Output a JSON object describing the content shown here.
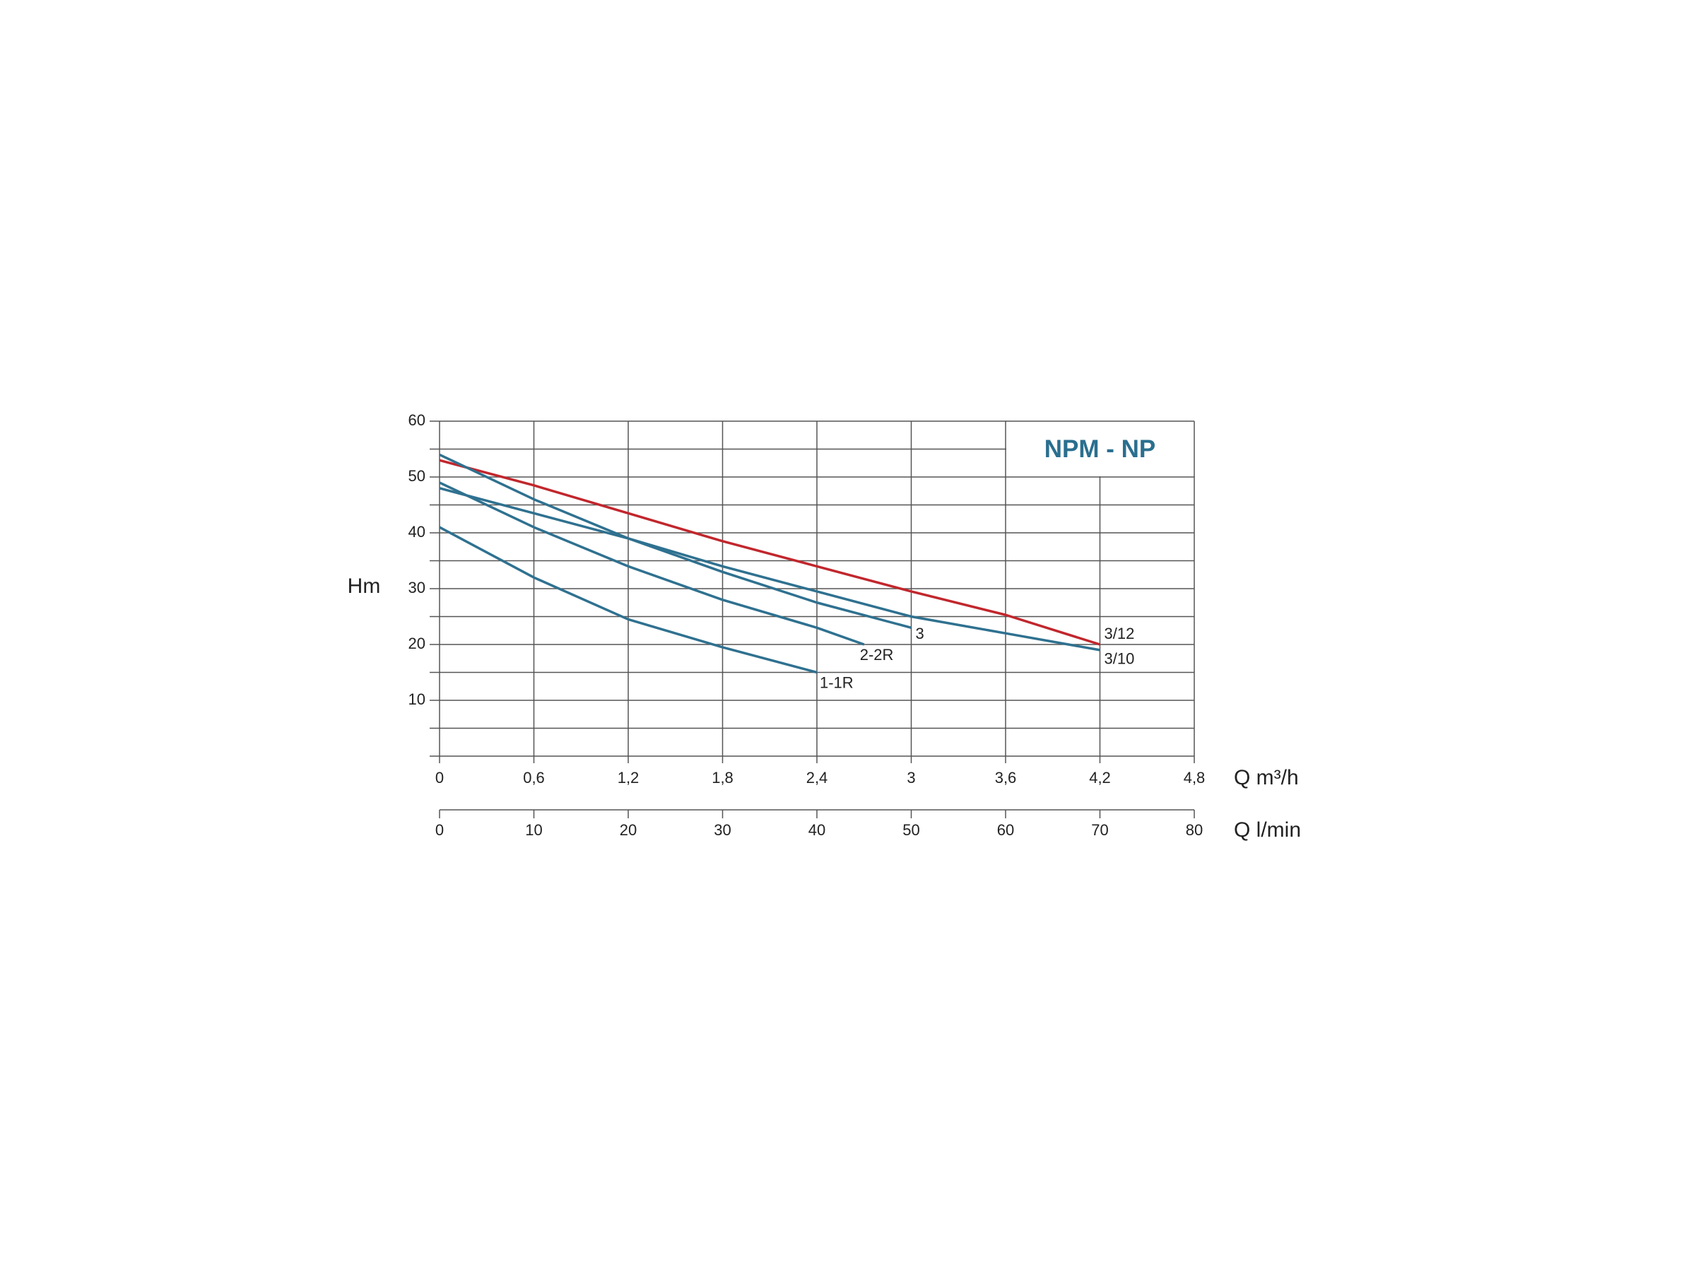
{
  "chart_data": {
    "type": "line",
    "title": "NPM - NP",
    "y_label": "Hm",
    "x_label": "Q m³/h",
    "x2_label": "Q l/min",
    "xlim": [
      0,
      4.8
    ],
    "xticks": [
      0,
      {
        "value": 0.6,
        "label": "0,6"
      },
      {
        "value": 1.2,
        "label": "1,2"
      },
      {
        "value": 1.8,
        "label": "1,8"
      },
      {
        "value": 2.4,
        "label": "2,4"
      },
      3,
      {
        "value": 3.6,
        "label": "3,6"
      },
      {
        "value": 4.2,
        "label": "4,2"
      },
      {
        "value": 4.8,
        "label": "4,8"
      }
    ],
    "x2lim": [
      0,
      80
    ],
    "x2ticks": [
      0,
      10,
      20,
      30,
      40,
      50,
      60,
      70,
      80
    ],
    "ylim": [
      0,
      60
    ],
    "yticks": [
      10,
      20,
      30,
      40,
      50,
      60
    ],
    "yminorticks": [
      0,
      5,
      15,
      25,
      35,
      45,
      55
    ],
    "grid": true,
    "series": [
      {
        "name": "3/12",
        "color": "#c1272d",
        "x": [
          0,
          0.6,
          1.2,
          1.8,
          2.4,
          3,
          3.6,
          4.2
        ],
        "values": [
          53,
          48.5,
          43.5,
          38.5,
          34,
          29.5,
          25.3,
          20
        ]
      },
      {
        "name": "3/10",
        "color": "#2f7190",
        "x": [
          0,
          0.6,
          1.2,
          1.8,
          2.4,
          3,
          3.6,
          4.2
        ],
        "values": [
          48,
          43.5,
          39,
          34,
          29.5,
          25,
          22,
          19
        ]
      },
      {
        "name": "3",
        "color": "#2f7190",
        "x": [
          0,
          0.6,
          1.2,
          1.8,
          2.4,
          3
        ],
        "values": [
          54,
          46,
          39,
          33,
          27.5,
          23
        ]
      },
      {
        "name": "2-2R",
        "color": "#2f7190",
        "x": [
          0,
          0.6,
          1.2,
          1.8,
          2.4,
          2.7
        ],
        "values": [
          49,
          41,
          34,
          28,
          23,
          20
        ]
      },
      {
        "name": "1-1R",
        "color": "#2f7190",
        "x": [
          0,
          0.6,
          1.2,
          1.8,
          2.4
        ],
        "values": [
          41,
          32,
          24.5,
          19.5,
          15
        ]
      }
    ]
  }
}
